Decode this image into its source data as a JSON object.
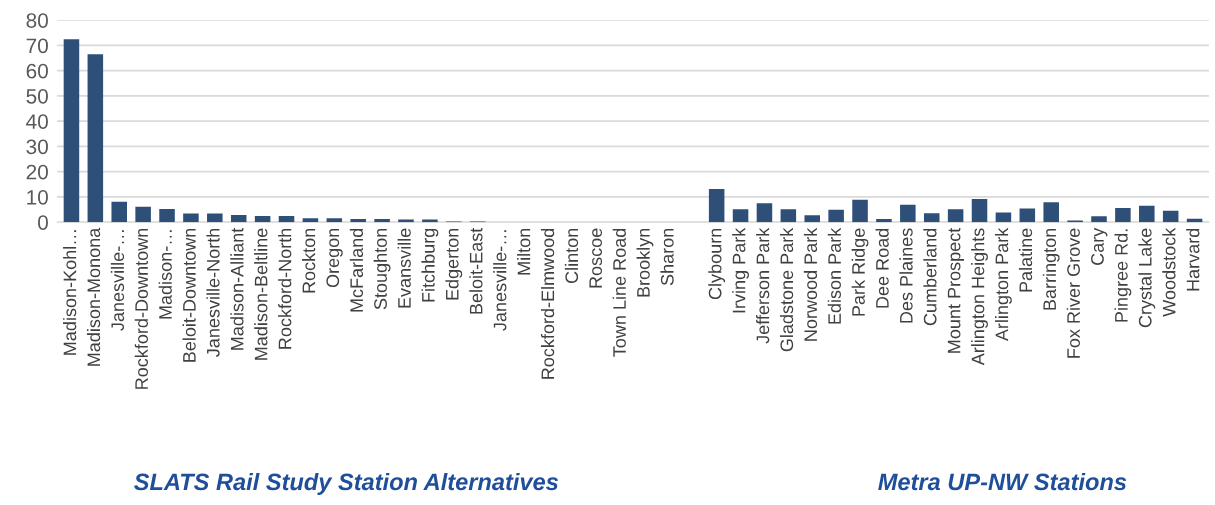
{
  "chart_data": {
    "type": "bar",
    "categories": [
      "Madison-Kohl…",
      "Madison-Monona",
      "Janesville-…",
      "Rockford-Downtown",
      "Madison-…",
      "Beloit-Downtown",
      "Janesville-North",
      "Madison-Alliant",
      "Madison-Beltline",
      "Rockford-North",
      "Rockton",
      "Oregon",
      "McFarland",
      "Stoughton",
      "Evansville",
      "Fitchburg",
      "Edgerton",
      "Beloit-East",
      "Janesville-…",
      "Milton",
      "Rockford-Elmwood",
      "Clinton",
      "Roscoe",
      "Town Line Road",
      "Brooklyn",
      "Sharon",
      null,
      "Clybourn",
      "Irving Park",
      "Jefferson Park",
      "Gladstone Park",
      "Norwood Park",
      "Edison Park",
      "Park Ridge",
      "Dee Road",
      "Des Plaines",
      "Cumberland",
      "Mount Prospect",
      "Arlington Heights",
      "Arlington Park",
      "Palatine",
      "Barrington",
      "Fox River Grove",
      "Cary",
      "Pingree Rd.",
      "Crystal Lake",
      "Woodstock",
      "Harvard"
    ],
    "values": [
      72.5,
      66.5,
      8.1,
      6.1,
      5.2,
      3.4,
      3.4,
      2.9,
      2.5,
      2.5,
      1.6,
      1.6,
      1.3,
      1.3,
      1.1,
      1.1,
      0.3,
      0.3,
      0,
      0,
      0,
      0,
      0,
      0,
      0,
      0,
      null,
      13.1,
      5.1,
      7.5,
      5.1,
      2.8,
      4.9,
      8.9,
      1.3,
      6.9,
      3.5,
      5.1,
      9.2,
      3.8,
      5.4,
      7.9,
      0.7,
      2.4,
      5.6,
      6.5,
      4.5,
      1.4
    ],
    "color": "#2e4f77",
    "ylim": [
      0,
      80
    ],
    "yticks": [
      0,
      10,
      20,
      30,
      40,
      50,
      60,
      70,
      80
    ],
    "grid": "y",
    "annotations": [
      "SLATS Rail Study Station Alternatives",
      "Metra UP-NW Stations"
    ]
  }
}
